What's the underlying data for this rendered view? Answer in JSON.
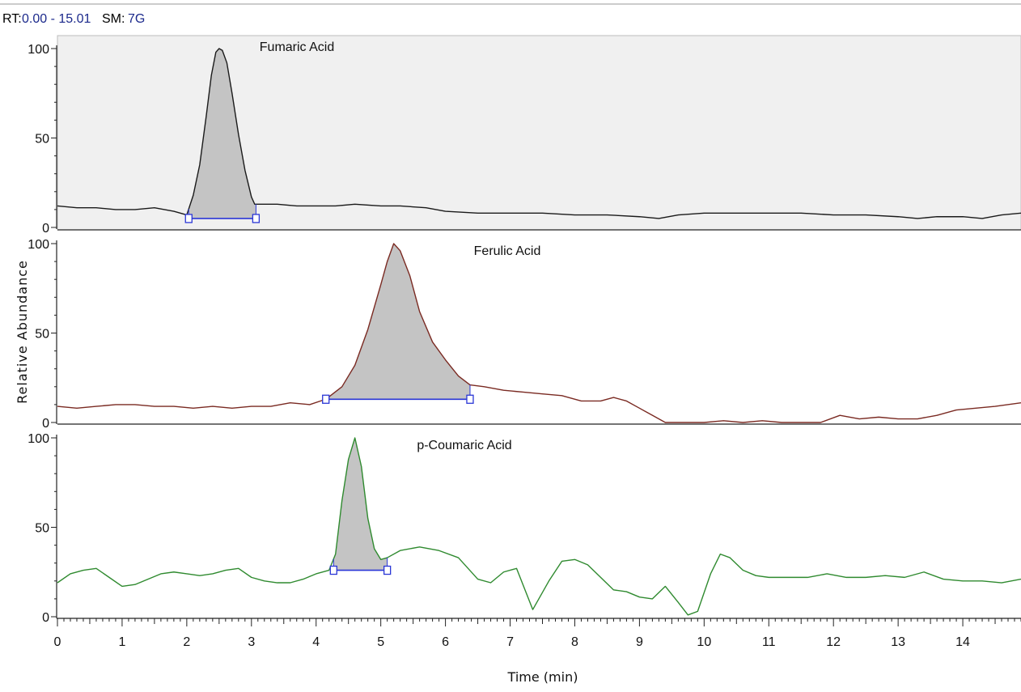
{
  "header": {
    "rt_label": "RT:",
    "rt_value": "0.00 - 15.01",
    "sm_label": "SM:",
    "sm_value": "7G"
  },
  "colors": {
    "fumaric": "#1a1a1a",
    "ferulic": "#7a2a22",
    "coumaric": "#2f8a2f",
    "peak_fill": "#c4c4c4",
    "baseline": "#2a36d6",
    "panel_bg_top": "#f0f0f0"
  },
  "chart_data": [
    {
      "type": "line",
      "title": "Fumaric Acid",
      "xlim": [
        0,
        14.9
      ],
      "ylim": [
        0,
        100
      ],
      "yticks": [
        0,
        50,
        100
      ],
      "x": [
        0,
        0.3,
        0.6,
        0.9,
        1.2,
        1.5,
        1.8,
        2.0,
        2.1,
        2.2,
        2.3,
        2.38,
        2.45,
        2.5,
        2.55,
        2.62,
        2.7,
        2.8,
        2.9,
        3.0,
        3.05,
        3.1,
        3.4,
        3.7,
        4.0,
        4.3,
        4.6,
        5.0,
        5.3,
        5.7,
        6.0,
        6.5,
        7.0,
        7.5,
        8.0,
        8.5,
        9.0,
        9.3,
        9.6,
        10.0,
        10.5,
        11.0,
        11.5,
        12.0,
        12.5,
        13.0,
        13.3,
        13.6,
        14.0,
        14.3,
        14.6,
        14.9
      ],
      "y": [
        12,
        11,
        11,
        10,
        10,
        11,
        9,
        7,
        18,
        35,
        62,
        85,
        98,
        100,
        99,
        92,
        75,
        52,
        32,
        17,
        13,
        13,
        13,
        12,
        12,
        12,
        13,
        12,
        12,
        11,
        9,
        8,
        8,
        8,
        7,
        7,
        6,
        5,
        7,
        8,
        8,
        8,
        8,
        7,
        7,
        6,
        5,
        6,
        6,
        5,
        7,
        8
      ],
      "peak": {
        "start": 2.03,
        "end": 3.07,
        "baseline": 5
      }
    },
    {
      "type": "line",
      "title": "Ferulic Acid",
      "xlim": [
        0,
        14.9
      ],
      "ylim": [
        0,
        100
      ],
      "yticks": [
        0,
        50,
        100
      ],
      "x": [
        0,
        0.3,
        0.6,
        0.9,
        1.2,
        1.5,
        1.8,
        2.1,
        2.4,
        2.7,
        3.0,
        3.3,
        3.6,
        3.9,
        4.15,
        4.4,
        4.6,
        4.8,
        5.0,
        5.1,
        5.2,
        5.3,
        5.45,
        5.6,
        5.8,
        6.0,
        6.2,
        6.38,
        6.6,
        6.9,
        7.2,
        7.5,
        7.8,
        8.1,
        8.4,
        8.6,
        8.8,
        9.0,
        9.2,
        9.4,
        9.6,
        9.8,
        10.0,
        10.3,
        10.6,
        10.9,
        11.2,
        11.5,
        11.8,
        12.1,
        12.4,
        12.7,
        13.0,
        13.3,
        13.6,
        13.9,
        14.2,
        14.5,
        14.9
      ],
      "y": [
        9,
        8,
        9,
        10,
        10,
        9,
        9,
        8,
        9,
        8,
        9,
        9,
        11,
        10,
        13,
        20,
        32,
        52,
        77,
        90,
        100,
        96,
        82,
        62,
        45,
        35,
        26,
        21,
        20,
        18,
        17,
        16,
        15,
        12,
        12,
        14,
        12,
        8,
        4,
        0,
        0,
        0,
        0,
        1,
        0,
        1,
        0,
        0,
        0,
        4,
        2,
        3,
        2,
        2,
        4,
        7,
        8,
        9,
        11
      ],
      "peak": {
        "start": 4.15,
        "end": 6.38,
        "baseline": 13
      }
    },
    {
      "type": "line",
      "title": "p-Coumaric Acid",
      "xlim": [
        0,
        14.9
      ],
      "ylim": [
        0,
        100
      ],
      "yticks": [
        0,
        50,
        100
      ],
      "xticks": [
        0,
        1,
        2,
        3,
        4,
        5,
        6,
        7,
        8,
        9,
        10,
        11,
        12,
        13,
        14
      ],
      "xlabel": "Time (min)",
      "ylabel": "Relative Abundance",
      "x": [
        0,
        0.2,
        0.4,
        0.6,
        0.8,
        1.0,
        1.2,
        1.4,
        1.6,
        1.8,
        2.0,
        2.2,
        2.4,
        2.6,
        2.8,
        3.0,
        3.2,
        3.4,
        3.6,
        3.8,
        4.0,
        4.2,
        4.3,
        4.4,
        4.5,
        4.6,
        4.7,
        4.8,
        4.9,
        5.0,
        5.1,
        5.3,
        5.6,
        5.9,
        6.2,
        6.5,
        6.7,
        6.9,
        7.1,
        7.35,
        7.6,
        7.8,
        8.0,
        8.2,
        8.4,
        8.6,
        8.8,
        9.0,
        9.2,
        9.4,
        9.6,
        9.75,
        9.9,
        10.1,
        10.25,
        10.4,
        10.6,
        10.8,
        11.0,
        11.3,
        11.6,
        11.9,
        12.2,
        12.5,
        12.8,
        13.1,
        13.4,
        13.7,
        14.0,
        14.3,
        14.6,
        14.9
      ],
      "y": [
        19,
        24,
        26,
        27,
        22,
        17,
        18,
        21,
        24,
        25,
        24,
        23,
        24,
        26,
        27,
        22,
        20,
        19,
        19,
        21,
        24,
        26,
        35,
        65,
        88,
        100,
        84,
        55,
        38,
        32,
        33,
        37,
        39,
        37,
        33,
        21,
        19,
        25,
        27,
        4,
        20,
        31,
        32,
        29,
        22,
        15,
        14,
        11,
        10,
        17,
        8,
        1,
        3,
        24,
        35,
        33,
        26,
        23,
        22,
        22,
        22,
        24,
        22,
        22,
        23,
        22,
        25,
        21,
        20,
        20,
        19,
        21
      ],
      "peak": {
        "start": 4.27,
        "end": 5.1,
        "baseline": 26
      }
    }
  ]
}
